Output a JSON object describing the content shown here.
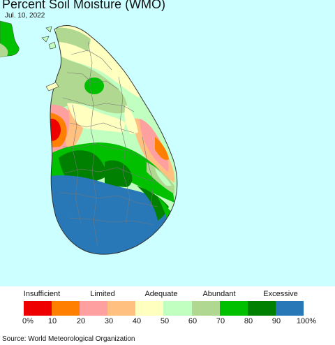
{
  "header": {
    "title": "Percent Soil Moisture (WMO)",
    "date": "Jul. 10, 2022"
  },
  "map": {
    "region": "Sri Lanka",
    "ocean_color": "#ccffff",
    "land_outside_color": "#00c800"
  },
  "legend": {
    "categories": [
      "Insufficient",
      "Limited",
      "Adequate",
      "Abundant",
      "Excessive"
    ],
    "colors": [
      "#ee0000",
      "#ff8000",
      "#ffa0a0",
      "#ffc080",
      "#ffffc0",
      "#c0ffc0",
      "#b0d890",
      "#00c000",
      "#008000",
      "#2878b8"
    ],
    "ticks": [
      "0%",
      "10",
      "20",
      "30",
      "40",
      "50",
      "60",
      "70",
      "80",
      "90",
      "100%"
    ]
  },
  "footer": {
    "source": "Source: World Meteorological Organization"
  }
}
